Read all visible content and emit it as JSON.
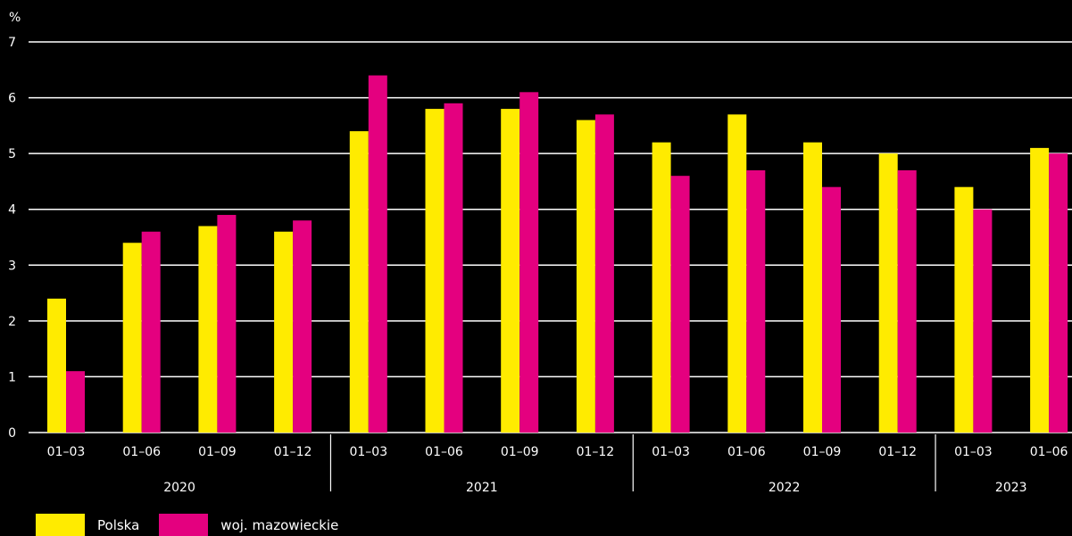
{
  "chart_data": {
    "type": "bar",
    "y_unit": "%",
    "ylim": [
      0,
      7
    ],
    "yticks": [
      "0",
      "1",
      "2",
      "3",
      "4",
      "5",
      "6",
      "7"
    ],
    "grid": true,
    "legend_position": "bottom-left",
    "groups": [
      {
        "label": "2020",
        "categories": [
          "01–03",
          "01–06",
          "01–09",
          "01–12"
        ]
      },
      {
        "label": "2021",
        "categories": [
          "01–03",
          "01–06",
          "01–09",
          "01–12"
        ]
      },
      {
        "label": "2022",
        "categories": [
          "01–03",
          "01–06",
          "01–09",
          "01–12"
        ]
      },
      {
        "label": "2023",
        "categories": [
          "01–03",
          "01–06"
        ]
      }
    ],
    "series": [
      {
        "name": "Polska",
        "color": "#FFEB00",
        "values": [
          2.4,
          3.4,
          3.7,
          3.6,
          5.4,
          5.8,
          5.8,
          5.6,
          5.2,
          5.7,
          5.2,
          5.0,
          4.4,
          5.1
        ]
      },
      {
        "name": "woj. mazowieckie",
        "color": "#E4007F",
        "values": [
          1.1,
          3.6,
          3.9,
          3.8,
          6.4,
          5.9,
          6.1,
          5.7,
          4.6,
          4.7,
          4.4,
          4.7,
          4.0,
          5.0
        ]
      }
    ]
  }
}
